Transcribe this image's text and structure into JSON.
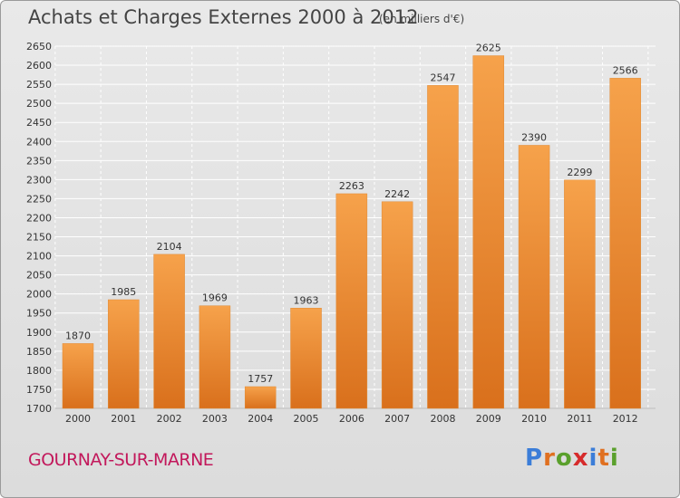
{
  "header": {
    "title": "Achats et Charges Externes 2000 à 2012",
    "subtitle": "(en milliers d'€)"
  },
  "footer": {
    "commune": "GOURNAY-SUR-MARNE",
    "brand": "Proxiti",
    "brand_colors": [
      "#3b7dd8",
      "#e07020",
      "#5aa02c",
      "#d62b2b",
      "#3b7dd8",
      "#e07020",
      "#5aa02c"
    ]
  },
  "colors": {
    "bar_light": "#f6a24b",
    "bar_dark": "#d9701c",
    "grid": "#ffffff",
    "text": "#333333"
  },
  "chart_data": {
    "type": "bar",
    "title": "Achats et Charges Externes 2000 à 2012",
    "subtitle": "(en milliers d'€)",
    "categories": [
      "2000",
      "2001",
      "2002",
      "2003",
      "2004",
      "2005",
      "2006",
      "2007",
      "2008",
      "2009",
      "2010",
      "2011",
      "2012"
    ],
    "values": [
      1870,
      1985,
      2104,
      1969,
      1757,
      1963,
      2263,
      2242,
      2547,
      2625,
      2390,
      2299,
      2566
    ],
    "ylim": [
      1700,
      2650
    ],
    "ytick_step": 50,
    "grid": true,
    "xlabel": "",
    "ylabel": ""
  }
}
